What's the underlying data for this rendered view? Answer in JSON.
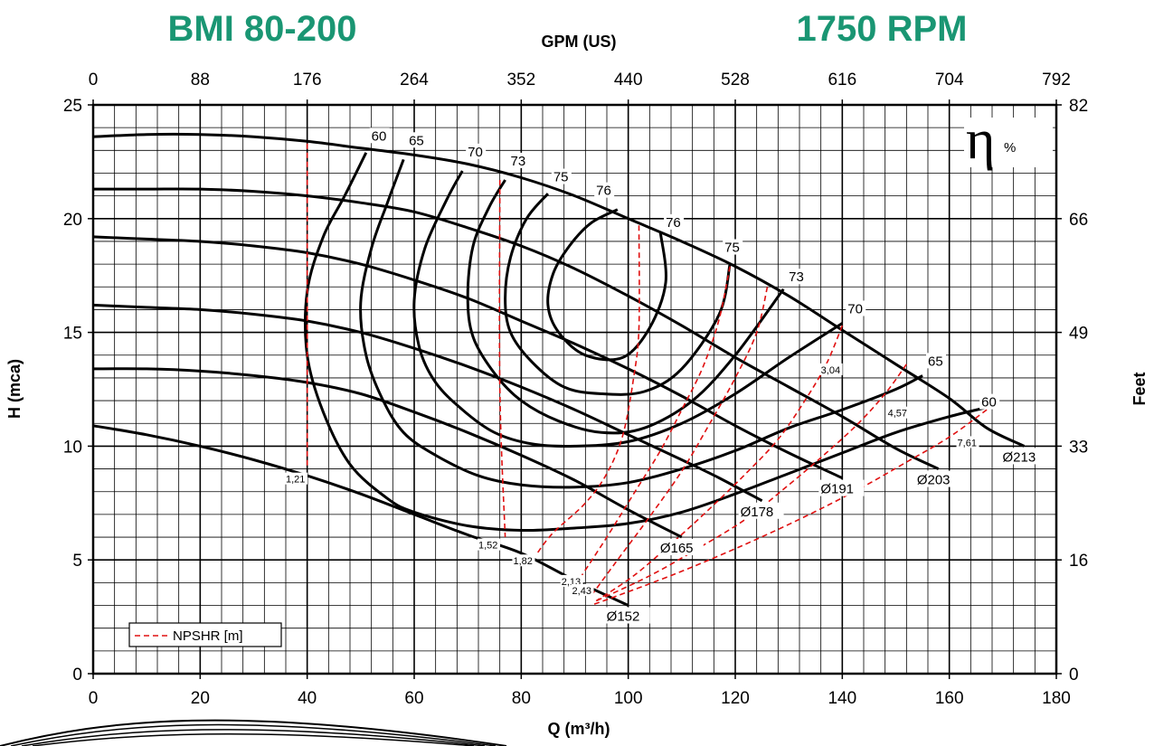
{
  "header": {
    "model": "BMI 80-200",
    "speed": "1750 RPM"
  },
  "chart_data": {
    "type": "line",
    "title": "BMI 80-200",
    "xlabel": "Q (m³/h)",
    "ylabel": "H (mca)",
    "x2label": "GPM (US)",
    "y2label": "Feet",
    "xlim": [
      0,
      180
    ],
    "ylim": [
      0,
      25
    ],
    "x_ticks": [
      "0",
      "20",
      "40",
      "60",
      "80",
      "100",
      "120",
      "140",
      "160",
      "180"
    ],
    "y_ticks": [
      "0",
      "5",
      "10",
      "15",
      "20",
      "25"
    ],
    "x2_ticks": [
      "0",
      "88",
      "176",
      "264",
      "352",
      "440",
      "528",
      "616",
      "704",
      "792"
    ],
    "y2_ticks": [
      "0",
      "16",
      "33",
      "49",
      "66",
      "82"
    ],
    "grid": true,
    "eta_label": "η",
    "eta_unit": "%",
    "legend": {
      "label": "NPSHR [m]",
      "position": "bottom-left"
    },
    "head_curves": [
      {
        "name": "Ø213",
        "x": [
          0,
          10,
          20,
          30,
          40,
          50,
          60,
          70,
          80,
          90,
          100,
          110,
          120,
          130,
          140,
          150,
          160,
          167,
          174
        ],
        "y": [
          23.6,
          23.7,
          23.7,
          23.6,
          23.4,
          23.1,
          22.8,
          22.4,
          21.8,
          21.0,
          20.0,
          19.0,
          17.9,
          16.6,
          15.1,
          13.6,
          12.1,
          10.8,
          10.0
        ],
        "label_at": [
          174,
          10.0
        ]
      },
      {
        "name": "Ø203",
        "x": [
          0,
          10,
          20,
          30,
          40,
          50,
          60,
          70,
          80,
          90,
          100,
          110,
          120,
          130,
          140,
          150,
          158
        ],
        "y": [
          21.3,
          21.3,
          21.3,
          21.2,
          21.0,
          20.7,
          20.3,
          19.6,
          18.8,
          17.8,
          16.6,
          15.3,
          13.9,
          12.6,
          11.3,
          9.9,
          9.0
        ],
        "label_at": [
          158,
          9.0
        ]
      },
      {
        "name": "Ø191",
        "x": [
          0,
          10,
          20,
          30,
          40,
          50,
          60,
          70,
          80,
          90,
          100,
          110,
          120,
          130,
          140
        ],
        "y": [
          19.2,
          19.1,
          19.0,
          18.8,
          18.5,
          18.0,
          17.3,
          16.5,
          15.5,
          14.5,
          13.4,
          12.2,
          10.9,
          9.7,
          8.6
        ],
        "label_at": [
          140,
          8.6
        ]
      },
      {
        "name": "Ø178",
        "x": [
          0,
          10,
          20,
          30,
          40,
          50,
          60,
          70,
          80,
          90,
          100,
          110,
          117,
          125
        ],
        "y": [
          16.2,
          16.1,
          16.0,
          15.8,
          15.5,
          15.0,
          14.3,
          13.5,
          12.6,
          11.6,
          10.5,
          9.4,
          8.6,
          7.6
        ],
        "label_at": [
          125,
          7.6
        ]
      },
      {
        "name": "Ø165",
        "x": [
          0,
          10,
          20,
          30,
          40,
          50,
          60,
          70,
          80,
          90,
          100,
          110
        ],
        "y": [
          13.4,
          13.4,
          13.3,
          13.1,
          12.8,
          12.3,
          11.5,
          10.6,
          9.6,
          8.5,
          7.2,
          6.0
        ],
        "label_at": [
          110,
          6.0
        ]
      },
      {
        "name": "Ø152",
        "x": [
          0,
          10,
          20,
          30,
          40,
          50,
          60,
          70,
          80,
          90,
          100
        ],
        "y": [
          10.9,
          10.5,
          10.0,
          9.4,
          8.7,
          7.9,
          7.0,
          6.1,
          5.3,
          4.1,
          3.0
        ],
        "label_at": [
          100,
          3.0
        ]
      }
    ],
    "efficiency_curves": [
      {
        "name": "60",
        "x": [
          51,
          47,
          43,
          40,
          40,
          43,
          48,
          55,
          60,
          70,
          80,
          90,
          100,
          110,
          120,
          130,
          140,
          150,
          160,
          167
        ],
        "y": [
          22.9,
          21.0,
          19.2,
          16.8,
          14.0,
          11.5,
          9.2,
          7.7,
          7.1,
          6.5,
          6.3,
          6.4,
          6.6,
          7.1,
          7.9,
          8.8,
          9.7,
          10.6,
          11.3,
          11.7
        ]
      },
      {
        "name": "65",
        "x": [
          58,
          55,
          52,
          50,
          51,
          54,
          58,
          64,
          72,
          80,
          90,
          100,
          110,
          120,
          130,
          140,
          150,
          155
        ],
        "y": [
          22.6,
          20.7,
          18.7,
          16.3,
          14.0,
          12.1,
          10.6,
          9.6,
          8.7,
          8.3,
          8.2,
          8.4,
          9.0,
          9.8,
          10.8,
          11.6,
          12.5,
          13.1
        ]
      },
      {
        "name": "70",
        "x": [
          69,
          66,
          62,
          60,
          61,
          64,
          69,
          75,
          82,
          90,
          100,
          110,
          120,
          130,
          140
        ],
        "y": [
          22.1,
          20.8,
          18.7,
          16.4,
          14.3,
          12.8,
          11.6,
          10.6,
          10.1,
          10.0,
          10.2,
          11.0,
          12.3,
          13.9,
          15.4
        ]
      },
      {
        "name": "73",
        "x": [
          77,
          74,
          71,
          70,
          71,
          75,
          80,
          87,
          95,
          103,
          112,
          120,
          129
        ],
        "y": [
          21.7,
          20.5,
          18.8,
          16.6,
          14.8,
          13.2,
          12.0,
          11.1,
          10.6,
          10.8,
          12.0,
          14.0,
          16.9
        ]
      },
      {
        "name": "75",
        "x": [
          85,
          81,
          78,
          77,
          78,
          82,
          88,
          95,
          103,
          110,
          117,
          119
        ],
        "y": [
          21.1,
          20.0,
          18.3,
          16.5,
          15.0,
          13.7,
          12.6,
          12.3,
          12.4,
          13.4,
          15.8,
          18.0
        ]
      },
      {
        "name": "76",
        "x": [
          98,
          93,
          89,
          86,
          85,
          87,
          92,
          99,
          104,
          107,
          106
        ],
        "y": [
          20.4,
          19.8,
          18.8,
          17.6,
          16.2,
          15.0,
          14.0,
          13.9,
          15.2,
          17.2,
          19.4
        ]
      }
    ],
    "npshr_curves": [
      {
        "name": "1,21",
        "value": 1.21,
        "x": [
          40,
          40
        ],
        "y": [
          23.3,
          9.0
        ]
      },
      {
        "name": "1,52",
        "value": 1.52,
        "x": [
          76,
          76,
          77
        ],
        "y": [
          21.7,
          12.5,
          6.0
        ]
      },
      {
        "name": "1,82",
        "value": 1.82,
        "x": [
          102,
          102,
          101,
          99,
          96,
          92,
          86,
          83
        ],
        "y": [
          19.7,
          15.2,
          13.0,
          10.5,
          8.8,
          7.5,
          6.2,
          5.3
        ]
      },
      {
        "name": "2,13",
        "value": 2.13,
        "x": [
          119,
          117,
          114,
          110,
          106,
          101,
          96,
          91
        ],
        "y": [
          17.9,
          15.6,
          13.5,
          11.6,
          9.8,
          7.9,
          6.0,
          4.2
        ]
      },
      {
        "name": "2,43",
        "value": 2.43,
        "x": [
          126,
          124,
          120,
          115,
          110,
          104,
          98,
          93
        ],
        "y": [
          17.0,
          15.0,
          13.0,
          10.9,
          8.9,
          6.9,
          5.0,
          3.4
        ]
      },
      {
        "name": "3,04",
        "value": 3.04,
        "x": [
          140,
          137,
          133,
          128,
          122,
          115,
          108,
          101,
          94
        ],
        "y": [
          15.3,
          13.6,
          12.0,
          10.3,
          8.8,
          7.2,
          5.7,
          4.3,
          3.2
        ]
      },
      {
        "name": "4,57",
        "value": 4.57,
        "x": [
          152,
          148,
          143,
          137,
          130,
          122,
          113,
          104,
          94
        ],
        "y": [
          13.6,
          12.3,
          11.0,
          9.7,
          8.3,
          6.8,
          5.5,
          4.3,
          3.2
        ]
      },
      {
        "name": "7,61",
        "value": 7.61,
        "x": [
          167,
          160,
          152,
          143,
          133,
          122,
          110,
          100,
          93
        ],
        "y": [
          11.6,
          10.4,
          9.3,
          8.1,
          6.9,
          5.7,
          4.5,
          3.6,
          3.0
        ]
      }
    ],
    "efficiency_markers": [
      {
        "text": "60",
        "x": 52,
        "y": 23.4
      },
      {
        "text": "65",
        "x": 59,
        "y": 23.2
      },
      {
        "text": "70",
        "x": 70,
        "y": 22.7
      },
      {
        "text": "73",
        "x": 78,
        "y": 22.3
      },
      {
        "text": "75",
        "x": 86,
        "y": 21.6
      },
      {
        "text": "76",
        "x": 94,
        "y": 21.0
      },
      {
        "text": "76",
        "x": 107,
        "y": 19.6
      },
      {
        "text": "75",
        "x": 118,
        "y": 18.5
      },
      {
        "text": "73",
        "x": 130,
        "y": 17.2
      },
      {
        "text": "70",
        "x": 141,
        "y": 15.8
      },
      {
        "text": "65",
        "x": 156,
        "y": 13.5
      },
      {
        "text": "60",
        "x": 166,
        "y": 11.7
      }
    ],
    "npshr_markers": [
      {
        "text": "1,21",
        "x": 36,
        "y": 8.4
      },
      {
        "text": "1,52",
        "x": 72,
        "y": 5.5
      },
      {
        "text": "1,82",
        "x": 78.5,
        "y": 4.8
      },
      {
        "text": "2,13",
        "x": 87.5,
        "y": 3.9
      },
      {
        "text": "2,43",
        "x": 89.5,
        "y": 3.5
      },
      {
        "text": "3,04",
        "x": 136,
        "y": 13.2
      },
      {
        "text": "4,57",
        "x": 148.5,
        "y": 11.3
      },
      {
        "text": "7,61",
        "x": 161.5,
        "y": 10.0
      }
    ]
  }
}
